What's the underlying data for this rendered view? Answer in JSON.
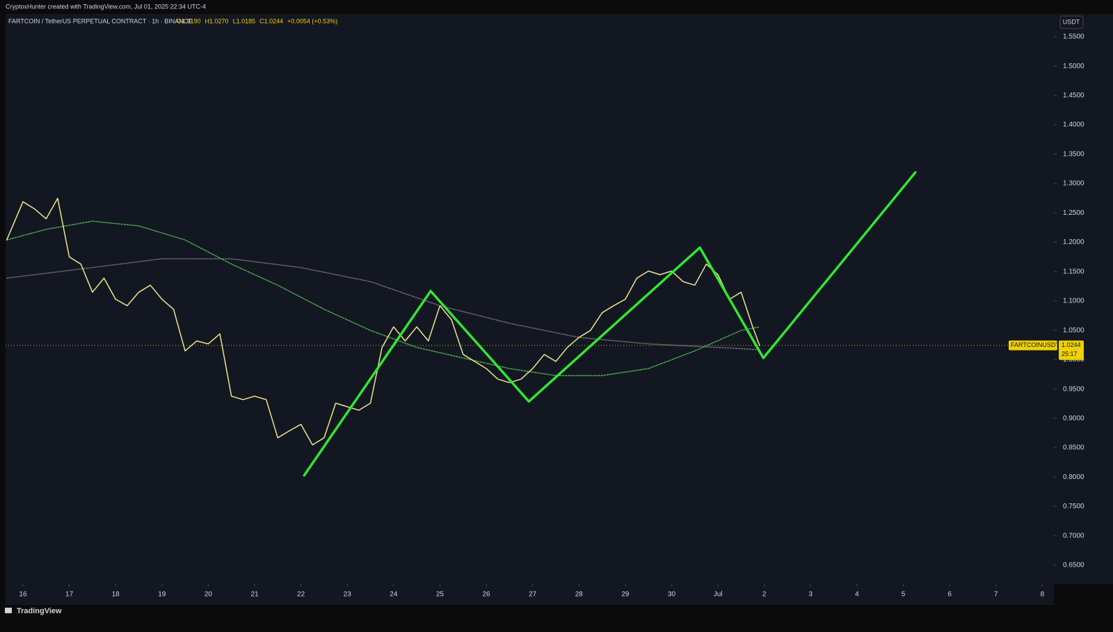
{
  "top_bar": "CryptoxHunter created with TradingView.com, Jul 01, 2025 22:34 UTC-4",
  "footer": "TradingView",
  "chart_data": {
    "type": "line",
    "title": "FARTCOIN / TetherUS PERPETUAL CONTRACT · 1h · BINANCE",
    "ohlc_labels": [
      "O1.0190",
      "H1.0270",
      "L1.0185",
      "C1.0244",
      "+0.0054 (+0.53%)"
    ],
    "currency": "USDT",
    "symbol_tag": "FARTCOINUSDT.P",
    "last_price": {
      "value": 1.0244,
      "label": "1.0244"
    },
    "countdown": "25:17",
    "grid": false,
    "xlim": [
      -0.375,
      22.25
    ],
    "ylim": [
      0.618,
      1.589
    ],
    "xticks": [
      {
        "value": 0,
        "label": "16"
      },
      {
        "value": 1,
        "label": "17"
      },
      {
        "value": 2,
        "label": "18"
      },
      {
        "value": 3,
        "label": "19"
      },
      {
        "value": 4,
        "label": "20"
      },
      {
        "value": 5,
        "label": "21"
      },
      {
        "value": 6,
        "label": "22"
      },
      {
        "value": 7,
        "label": "23"
      },
      {
        "value": 8,
        "label": "24"
      },
      {
        "value": 9,
        "label": "25"
      },
      {
        "value": 10,
        "label": "26"
      },
      {
        "value": 11,
        "label": "27"
      },
      {
        "value": 12,
        "label": "28"
      },
      {
        "value": 13,
        "label": "29"
      },
      {
        "value": 14,
        "label": "30"
      },
      {
        "value": 15,
        "label": "Jul"
      },
      {
        "value": 16,
        "label": "2"
      },
      {
        "value": 17,
        "label": "3"
      },
      {
        "value": 18,
        "label": "4"
      },
      {
        "value": 19,
        "label": "5"
      },
      {
        "value": 20,
        "label": "6"
      },
      {
        "value": 21,
        "label": "7"
      },
      {
        "value": 22,
        "label": "8"
      }
    ],
    "yticks": [
      {
        "value": 0.65,
        "label": "0.6500"
      },
      {
        "value": 0.7,
        "label": "0.7000"
      },
      {
        "value": 0.75,
        "label": "0.7500"
      },
      {
        "value": 0.8,
        "label": "0.8000"
      },
      {
        "value": 0.85,
        "label": "0.8500"
      },
      {
        "value": 0.9,
        "label": "0.9000"
      },
      {
        "value": 0.95,
        "label": "0.9500"
      },
      {
        "value": 1.0,
        "label": "1.0000"
      },
      {
        "value": 1.05,
        "label": "1.0500"
      },
      {
        "value": 1.1,
        "label": "1.1000"
      },
      {
        "value": 1.15,
        "label": "1.1500"
      },
      {
        "value": 1.2,
        "label": "1.2000"
      },
      {
        "value": 1.25,
        "label": "1.2500"
      },
      {
        "value": 1.3,
        "label": "1.3000"
      },
      {
        "value": 1.35,
        "label": "1.3500"
      },
      {
        "value": 1.4,
        "label": "1.4000"
      },
      {
        "value": 1.45,
        "label": "1.4500"
      },
      {
        "value": 1.5,
        "label": "1.5000"
      },
      {
        "value": 1.55,
        "label": "1.5500"
      }
    ],
    "series": [
      {
        "color": "#6f6f6f",
        "dashed": true,
        "width": 1.5,
        "x": [
          -0.35,
          1.5,
          3,
          4.5,
          6,
          7.5,
          9,
          10.5,
          12,
          13.5,
          15,
          15.9
        ],
        "values": [
          1.139,
          1.157,
          1.172,
          1.172,
          1.157,
          1.133,
          1.092,
          1.062,
          1.038,
          1.027,
          1.021,
          1.017
        ]
      },
      {
        "color": "#4caf50",
        "dashed": true,
        "width": 1.5,
        "x": [
          -0.35,
          0.5,
          1.5,
          2.5,
          3.5,
          4.5,
          5.5,
          6.5,
          7.5,
          8.5,
          9.5,
          10.5,
          11.5,
          12.5,
          13.5,
          14.5,
          15.5,
          15.9
        ],
        "values": [
          1.204,
          1.222,
          1.236,
          1.228,
          1.204,
          1.163,
          1.127,
          1.086,
          1.05,
          1.021,
          1.003,
          0.985,
          0.973,
          0.973,
          0.985,
          1.015,
          1.05,
          1.056
        ]
      },
      {
        "color": "#f0e68c",
        "dashed": false,
        "width": 1.5,
        "x": [
          -0.35,
          0,
          0.25,
          0.5,
          0.75,
          1,
          1.25,
          1.5,
          1.75,
          2,
          2.25,
          2.5,
          2.75,
          3,
          3.25,
          3.5,
          3.75,
          4,
          4.25,
          4.5,
          4.75,
          5,
          5.25,
          5.5,
          5.75,
          6,
          6.25,
          6.5,
          6.75,
          7,
          7.25,
          7.5,
          7.75,
          8,
          8.25,
          8.5,
          8.75,
          9,
          9.25,
          9.5,
          9.75,
          10,
          10.25,
          10.5,
          10.75,
          11,
          11.25,
          11.5,
          11.75,
          12,
          12.25,
          12.5,
          12.75,
          13,
          13.25,
          13.5,
          13.75,
          14,
          14.25,
          14.5,
          14.75,
          15,
          15.25,
          15.5,
          15.75,
          15.9
        ],
        "values": [
          1.204,
          1.269,
          1.257,
          1.24,
          1.275,
          1.175,
          1.163,
          1.115,
          1.139,
          1.103,
          1.092,
          1.115,
          1.127,
          1.103,
          1.086,
          1.015,
          1.032,
          1.027,
          1.044,
          0.938,
          0.932,
          0.938,
          0.932,
          0.867,
          0.879,
          0.89,
          0.855,
          0.867,
          0.926,
          0.92,
          0.914,
          0.926,
          1.021,
          1.056,
          1.032,
          1.056,
          1.032,
          1.092,
          1.068,
          1.009,
          0.997,
          0.985,
          0.967,
          0.961,
          0.967,
          0.985,
          1.009,
          0.997,
          1.021,
          1.038,
          1.05,
          1.08,
          1.092,
          1.103,
          1.139,
          1.151,
          1.145,
          1.151,
          1.133,
          1.127,
          1.163,
          1.145,
          1.103,
          1.115,
          1.056,
          1.024
        ]
      },
      {
        "color": "#32e632",
        "dashed": false,
        "width": 3.5,
        "x": [
          6.07,
          8.8,
          10.92,
          14.61,
          15.98,
          19.26
        ],
        "values": [
          0.803,
          1.117,
          0.929,
          1.191,
          1.003,
          1.319
        ]
      }
    ]
  }
}
